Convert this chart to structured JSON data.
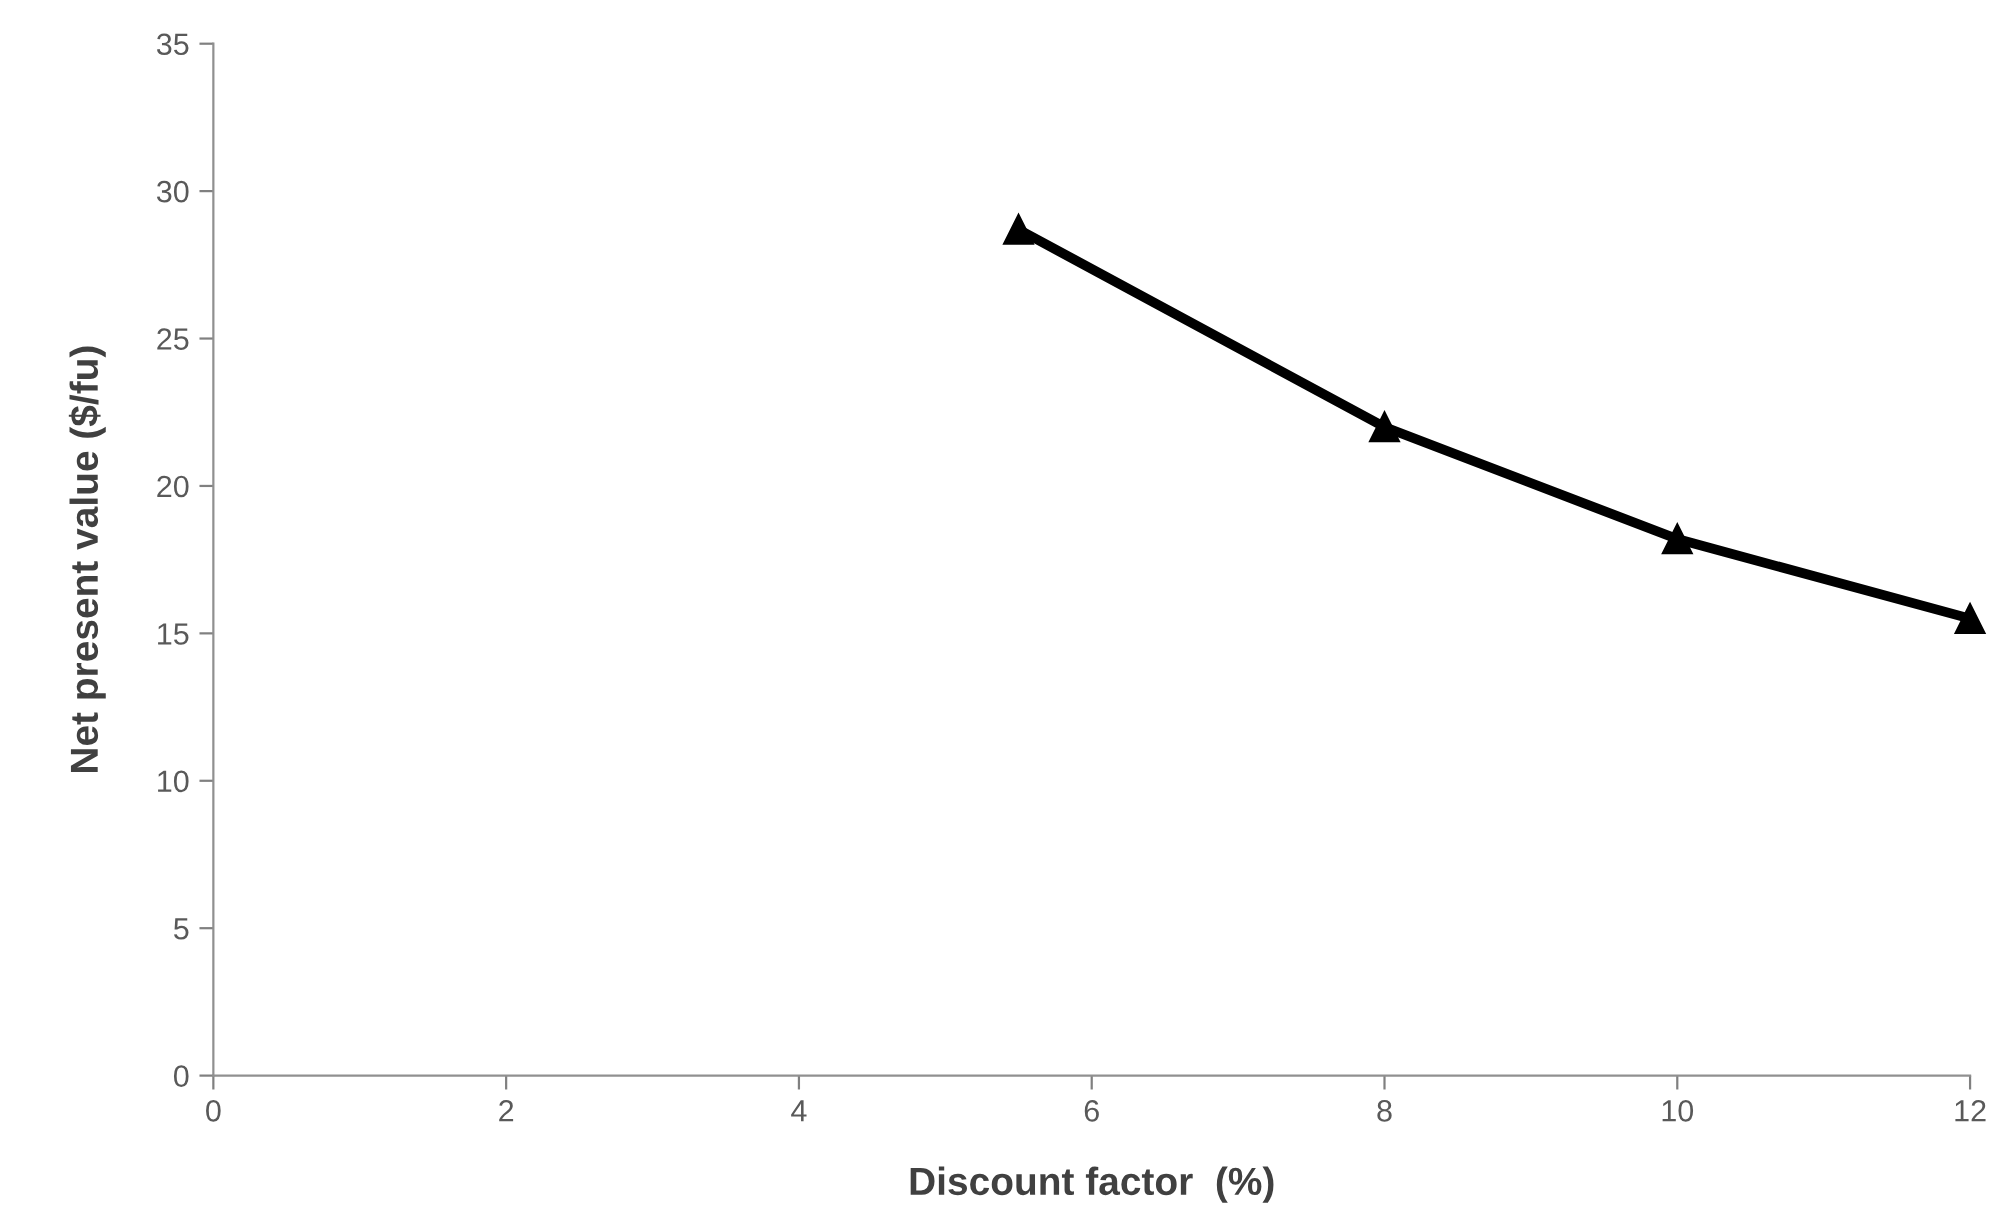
{
  "chart_data": {
    "type": "line",
    "xlabel": "Discount factor  (%)",
    "ylabel": "Net present value ($/fu)",
    "x": [
      5.5,
      8,
      10,
      12
    ],
    "series": [
      {
        "color": "#000000",
        "values": [
          28.7,
          22.0,
          18.2,
          15.5
        ]
      }
    ],
    "xlim": [
      0,
      12
    ],
    "xticks": [
      0,
      2,
      4,
      6,
      8,
      10,
      12
    ],
    "ylim": [
      0,
      35
    ],
    "yticks": [
      0,
      5,
      10,
      15,
      20,
      25,
      30,
      35
    ],
    "marker": "triangle",
    "line_style": "solid",
    "grid": false,
    "legend": false
  }
}
